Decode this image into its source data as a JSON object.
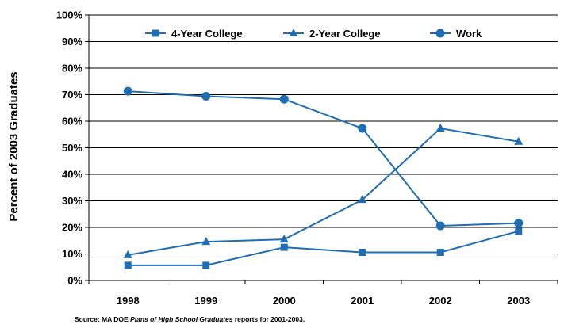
{
  "chart_data": {
    "type": "line",
    "x": [
      "1998",
      "1999",
      "2000",
      "2001",
      "2002",
      "2003"
    ],
    "series": [
      {
        "name": "4-Year College",
        "marker": "square",
        "values": [
          5.7,
          5.7,
          12.5,
          10.6,
          10.6,
          18.6
        ]
      },
      {
        "name": "2-Year College",
        "marker": "triangle",
        "values": [
          9.6,
          14.6,
          15.5,
          30.4,
          57.3,
          52.3
        ]
      },
      {
        "name": "Work",
        "marker": "circle",
        "values": [
          71.3,
          69.4,
          68.3,
          57.3,
          20.6,
          21.6
        ]
      }
    ],
    "yticks": [
      "0%",
      "10%",
      "20%",
      "30%",
      "40%",
      "50%",
      "60%",
      "70%",
      "80%",
      "90%",
      "100%"
    ],
    "ylim": [
      0,
      100
    ],
    "ylabel": "Percent of 2003 Graduates",
    "xlabel": "",
    "title": "",
    "grid": "horizontal",
    "legend_position": "top",
    "line_color": "#1f6db2"
  },
  "source": {
    "prefix": "Source:  MA DOE ",
    "italic": "Plans of High School Graduates",
    "suffix": " reports for 2001-2003."
  }
}
